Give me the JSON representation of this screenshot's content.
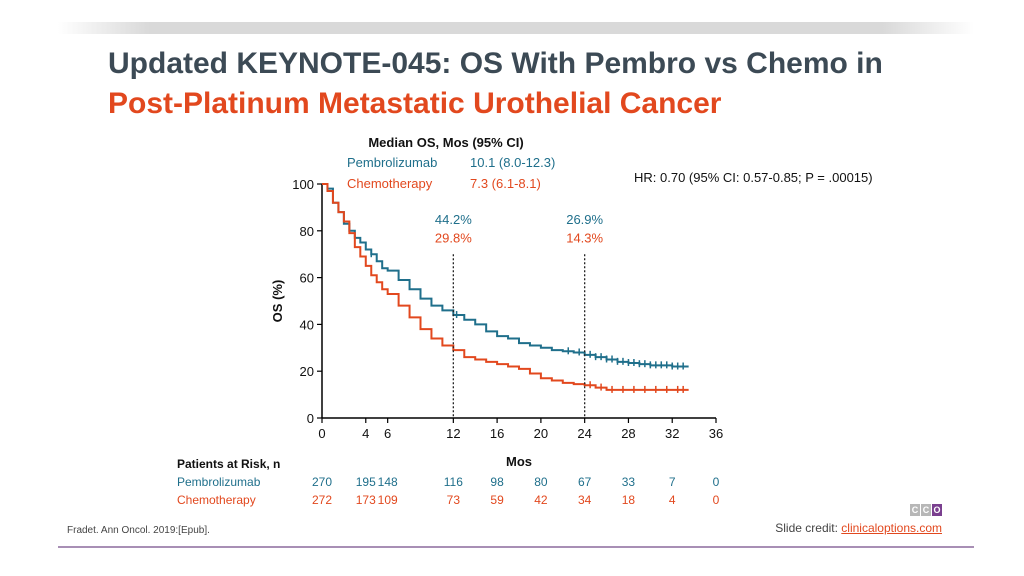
{
  "title": {
    "line1": "Updated KEYNOTE-045: OS With Pembro vs Chemo in",
    "line2": "Post-Platinum Metastatic Urothelial Cancer"
  },
  "colors": {
    "pembro": "#1f6f8b",
    "chemo": "#e2481e",
    "title_dark": "#3c4a55",
    "accent_line": "#a88fb5"
  },
  "median": {
    "heading": "Median OS, Mos (95% CI)",
    "rows": [
      {
        "name": "Pembrolizumab",
        "value": "10.1 (8.0-12.3)",
        "series": "pembro"
      },
      {
        "name": "Chemotherapy",
        "value": "7.3 (6.1-8.1)",
        "series": "chemo"
      }
    ]
  },
  "hr_text": "HR: 0.70 (95% CI: 0.57-0.85; P = .00015)",
  "chart_data": {
    "type": "line",
    "subtype": "kaplan-meier",
    "xlabel": "Mos",
    "ylabel": "OS (%)",
    "xlim": [
      0,
      36
    ],
    "ylim": [
      0,
      100
    ],
    "x_ticks": [
      0,
      4,
      6,
      12,
      16,
      20,
      24,
      28,
      32,
      36
    ],
    "x_tick_labels": [
      "0",
      "4",
      "6",
      "12",
      "16",
      "20",
      "24",
      "28",
      "32",
      "36"
    ],
    "y_ticks": [
      0,
      20,
      40,
      60,
      80,
      100
    ],
    "y_tick_labels": [
      "0",
      "20",
      "40",
      "60",
      "80",
      "100"
    ],
    "series": [
      {
        "name": "Pembrolizumab",
        "key": "pembro",
        "x": [
          0,
          0.5,
          1,
          1.5,
          2,
          2.5,
          3,
          3.5,
          4,
          4.5,
          5,
          5.5,
          6,
          7,
          8,
          9,
          10,
          11,
          12,
          13,
          14,
          15,
          16,
          17,
          18,
          19,
          20,
          21,
          22,
          23,
          24,
          25,
          26,
          27,
          28,
          29,
          30,
          31,
          32,
          33,
          33.5
        ],
        "y": [
          100,
          98,
          92,
          88,
          83,
          80,
          77,
          75,
          72,
          70,
          67,
          64,
          63,
          59,
          55,
          51,
          48,
          46,
          44,
          42,
          40,
          37,
          35,
          34,
          32,
          31,
          30,
          29,
          28.5,
          28,
          27,
          26,
          25,
          24,
          23.5,
          23,
          22.5,
          22.5,
          22,
          22,
          22
        ]
      },
      {
        "name": "Chemotherapy",
        "key": "chemo",
        "x": [
          0,
          0.5,
          1,
          1.5,
          2,
          2.5,
          3,
          3.5,
          4,
          4.5,
          5,
          5.5,
          6,
          7,
          8,
          9,
          10,
          11,
          12,
          13,
          14,
          15,
          16,
          17,
          18,
          19,
          20,
          21,
          22,
          23,
          24,
          25,
          26,
          27,
          28,
          29,
          30,
          31,
          32,
          33,
          33.5
        ],
        "y": [
          100,
          97,
          92,
          88,
          84,
          79,
          73,
          69,
          65,
          61,
          58,
          55,
          53,
          48,
          43,
          38,
          34,
          31,
          29,
          26,
          25,
          24,
          23,
          22,
          21,
          19,
          17,
          16,
          15,
          14.5,
          14,
          13,
          12,
          12,
          12,
          12,
          12,
          12,
          12,
          12,
          12
        ]
      }
    ],
    "censor_marks": {
      "pembro": [
        4.5,
        12.3,
        22.5,
        23.5,
        24.5,
        25,
        25.5,
        26,
        26.5,
        27,
        27.5,
        28,
        28.5,
        29,
        29.5,
        30,
        30.5,
        31,
        31.5,
        32,
        32.5,
        33
      ],
      "chemo": [
        24.5,
        25.5,
        26.5,
        27.5,
        28.5,
        29.5,
        30.5,
        31.5,
        32.5,
        33
      ]
    },
    "reference_lines": [
      {
        "x": 12,
        "pembro": "44.2%",
        "chemo": "29.8%"
      },
      {
        "x": 24,
        "pembro": "26.9%",
        "chemo": "14.3%"
      }
    ],
    "risk_table": {
      "header": "Patients at Risk, n",
      "columns": [
        0,
        4,
        6,
        12,
        16,
        20,
        24,
        28,
        32,
        36
      ],
      "rows": [
        {
          "name": "Pembrolizumab",
          "key": "pembro",
          "values": [
            "270",
            "195",
            "148",
            "116",
            "98",
            "80",
            "67",
            "33",
            "7",
            "0"
          ]
        },
        {
          "name": "Chemotherapy",
          "key": "chemo",
          "values": [
            "272",
            "173",
            "109",
            "73",
            "59",
            "42",
            "34",
            "18",
            "4",
            "0"
          ]
        }
      ]
    }
  },
  "footer": {
    "citation": "Fradet. Ann Oncol. 2019:[Epub].",
    "credit_label": "Slide credit: ",
    "credit_link": "clinicaloptions.com",
    "logo_letters": [
      "C",
      "C",
      "O"
    ]
  }
}
